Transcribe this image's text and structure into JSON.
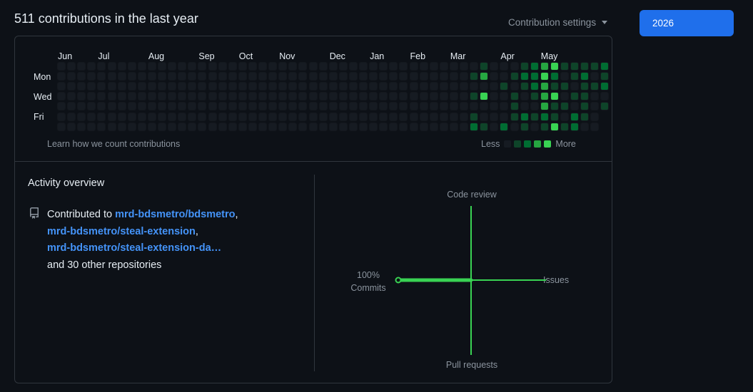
{
  "header": {
    "title": "511 contributions in the last year",
    "settings_label": "Contribution settings",
    "year_button": "2026"
  },
  "calendar": {
    "months": [
      "Jun",
      "Jul",
      "Aug",
      "Sep",
      "Oct",
      "Nov",
      "Dec",
      "Jan",
      "Feb",
      "Mar",
      "Apr",
      "May"
    ],
    "days": [
      "Mon",
      "Wed",
      "Fri"
    ],
    "learn_link": "Learn how we count contributions",
    "legend_less": "Less",
    "legend_more": "More",
    "colors": [
      "#161b22",
      "#0e4429",
      "#006d32",
      "#26a641",
      "#39d353"
    ],
    "active_cells": [
      [
        41,
        1,
        1
      ],
      [
        41,
        3,
        1
      ],
      [
        41,
        5,
        1
      ],
      [
        41,
        6,
        2
      ],
      [
        42,
        0,
        1
      ],
      [
        42,
        1,
        3
      ],
      [
        42,
        3,
        4
      ],
      [
        42,
        6,
        1
      ],
      [
        44,
        2,
        1
      ],
      [
        44,
        6,
        2
      ],
      [
        45,
        1,
        1
      ],
      [
        45,
        3,
        1
      ],
      [
        45,
        4,
        1
      ],
      [
        45,
        5,
        1
      ],
      [
        46,
        0,
        1
      ],
      [
        46,
        1,
        2
      ],
      [
        46,
        2,
        1
      ],
      [
        46,
        5,
        2
      ],
      [
        46,
        6,
        1
      ],
      [
        47,
        0,
        2
      ],
      [
        47,
        1,
        2
      ],
      [
        47,
        2,
        2
      ],
      [
        47,
        3,
        1
      ],
      [
        47,
        5,
        1
      ],
      [
        48,
        0,
        3
      ],
      [
        48,
        1,
        4
      ],
      [
        48,
        2,
        3
      ],
      [
        48,
        3,
        3
      ],
      [
        48,
        4,
        3
      ],
      [
        48,
        5,
        2
      ],
      [
        48,
        6,
        1
      ],
      [
        49,
        0,
        4
      ],
      [
        49,
        1,
        2
      ],
      [
        49,
        2,
        1
      ],
      [
        49,
        3,
        4
      ],
      [
        49,
        4,
        1
      ],
      [
        49,
        5,
        1
      ],
      [
        49,
        6,
        4
      ],
      [
        50,
        0,
        1
      ],
      [
        50,
        2,
        1
      ],
      [
        50,
        4,
        1
      ],
      [
        50,
        6,
        1
      ],
      [
        51,
        0,
        1
      ],
      [
        51,
        1,
        1
      ],
      [
        51,
        3,
        1
      ],
      [
        51,
        5,
        2
      ],
      [
        51,
        6,
        2
      ],
      [
        52,
        0,
        1
      ],
      [
        52,
        1,
        2
      ],
      [
        52,
        2,
        1
      ],
      [
        52,
        3,
        1
      ],
      [
        52,
        4,
        1
      ],
      [
        52,
        5,
        1
      ],
      [
        53,
        0,
        1
      ],
      [
        53,
        2,
        1
      ],
      [
        54,
        0,
        2
      ],
      [
        54,
        1,
        1
      ],
      [
        54,
        2,
        2
      ],
      [
        54,
        4,
        1
      ]
    ]
  },
  "overview": {
    "title": "Activity overview",
    "contributed_prefix": "Contributed to ",
    "repos": [
      "mrd-bdsmetro/bdsmetro",
      "mrd-bdsmetro/steal-extension",
      "mrd-bdsmetro/steal-extension-da…"
    ],
    "others": "and 30 other repositories"
  },
  "activity_chart": {
    "code_review": "Code review",
    "issues": "Issues",
    "pull_requests": "Pull requests",
    "commits_pct": "100%",
    "commits": "Commits",
    "values": {
      "commits": 100,
      "issues": 0,
      "code_review": 0,
      "pull_requests": 0
    },
    "line_color": "#39d353"
  }
}
